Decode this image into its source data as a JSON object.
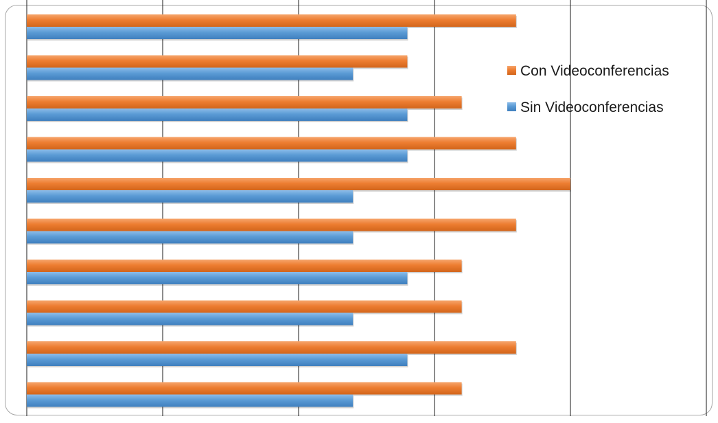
{
  "chart_data": {
    "type": "bar",
    "orientation": "horizontal",
    "categories": [
      "",
      "",
      "",
      "",
      "",
      "",
      "",
      "",
      "",
      ""
    ],
    "series": [
      {
        "name": "Con Videoconferencias",
        "color": "#ED7D31",
        "values": [
          9,
          7,
          8,
          9,
          10,
          9,
          8,
          8,
          9,
          8
        ]
      },
      {
        "name": "Sin Videoconferencias",
        "color": "#5B9BD5",
        "values": [
          7,
          6,
          7,
          7,
          6,
          6,
          7,
          6,
          7,
          6
        ]
      }
    ],
    "xlim": [
      0,
      12.5
    ],
    "x_gridlines": [
      0,
      2.5,
      5,
      7.5,
      10,
      12.5
    ],
    "xlabel": "",
    "ylabel": "",
    "title": "",
    "grid": true,
    "legend_position": "top-right"
  }
}
